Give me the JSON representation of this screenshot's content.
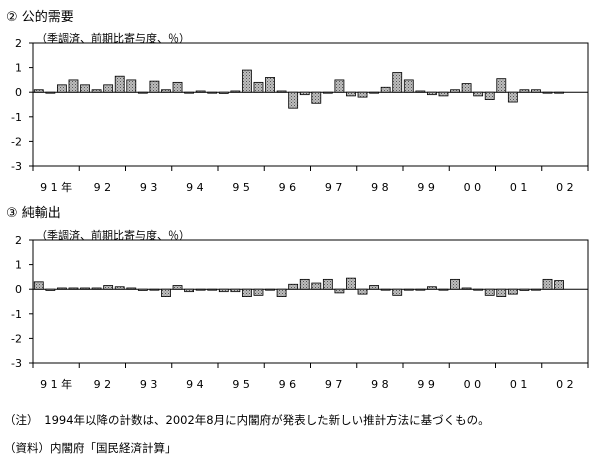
{
  "notes": {
    "note": "（注）　1994年以降の計数は、2002年8月に内閣府が発表した新しい推計方法に基づくもの。",
    "source": "（資料）内閣府「国民経済計算」"
  },
  "chart_data": [
    {
      "type": "bar",
      "title": "② 公的需要",
      "subtitle": "（季調済、前期比寄与度、％）",
      "ylim": [
        -3,
        2
      ],
      "yticks": [
        "2",
        "1",
        "0",
        "-1",
        "-2",
        "-3"
      ],
      "year_labels": [
        "9 1 年",
        "9 2",
        "9 3",
        "9 4",
        "9 5",
        "9 6",
        "9 7",
        "9 8",
        "9 9",
        "0 0",
        "0 1",
        "0 2"
      ],
      "grid": false,
      "x": [
        "91Q1",
        "91Q2",
        "91Q3",
        "91Q4",
        "92Q1",
        "92Q2",
        "92Q3",
        "92Q4",
        "93Q1",
        "93Q2",
        "93Q3",
        "93Q4",
        "94Q1",
        "94Q2",
        "94Q3",
        "94Q4",
        "95Q1",
        "95Q2",
        "95Q3",
        "95Q4",
        "96Q1",
        "96Q2",
        "96Q3",
        "96Q4",
        "97Q1",
        "97Q2",
        "97Q3",
        "97Q4",
        "98Q1",
        "98Q2",
        "98Q3",
        "98Q4",
        "99Q1",
        "99Q2",
        "99Q3",
        "99Q4",
        "00Q1",
        "00Q2",
        "00Q3",
        "00Q4",
        "01Q1",
        "01Q2",
        "01Q3",
        "01Q4",
        "02Q1",
        "02Q2"
      ],
      "values": [
        0.1,
        0,
        0.3,
        0.5,
        0.3,
        0.1,
        0.3,
        0.65,
        0.5,
        0,
        0.45,
        0.1,
        0.4,
        0,
        0.05,
        0,
        -0.05,
        0.05,
        0.9,
        0.4,
        0.6,
        0.05,
        -0.65,
        -0.1,
        -0.45,
        0,
        0.5,
        -0.15,
        -0.2,
        0,
        0.2,
        0.8,
        0.5,
        0.05,
        -0.1,
        -0.15,
        0.1,
        0.35,
        -0.15,
        -0.3,
        0.55,
        -0.4,
        0.1,
        0.1,
        0,
        0
      ]
    },
    {
      "type": "bar",
      "title": "③ 純輸出",
      "subtitle": "（季調済、前期比寄与度、％）",
      "ylim": [
        -3,
        2
      ],
      "yticks": [
        "2",
        "1",
        "0",
        "-1",
        "-2",
        "-3"
      ],
      "year_labels": [
        "9 1 年",
        "9 2",
        "9 3",
        "9 4",
        "9 5",
        "9 6",
        "9 7",
        "9 8",
        "9 9",
        "0 0",
        "0 1",
        "0 2"
      ],
      "grid": false,
      "x": [
        "91Q1",
        "91Q2",
        "91Q3",
        "91Q4",
        "92Q1",
        "92Q2",
        "92Q3",
        "92Q4",
        "93Q1",
        "93Q2",
        "93Q3",
        "93Q4",
        "94Q1",
        "94Q2",
        "94Q3",
        "94Q4",
        "95Q1",
        "95Q2",
        "95Q3",
        "95Q4",
        "96Q1",
        "96Q2",
        "96Q3",
        "96Q4",
        "97Q1",
        "97Q2",
        "97Q3",
        "97Q4",
        "98Q1",
        "98Q2",
        "98Q3",
        "98Q4",
        "99Q1",
        "99Q2",
        "99Q3",
        "99Q4",
        "00Q1",
        "00Q2",
        "00Q3",
        "00Q4",
        "01Q1",
        "01Q2",
        "01Q3",
        "01Q4",
        "02Q1",
        "02Q2"
      ],
      "values": [
        0.3,
        -0.05,
        0.05,
        0.05,
        0.05,
        0.05,
        0.15,
        0.1,
        0.05,
        -0.05,
        0,
        -0.3,
        0.15,
        -0.1,
        0,
        0,
        -0.1,
        -0.1,
        -0.3,
        -0.25,
        0,
        -0.3,
        0.2,
        0.4,
        0.25,
        0.4,
        -0.15,
        0.45,
        -0.2,
        0.15,
        0,
        -0.25,
        0,
        0,
        0.1,
        0,
        0.4,
        0.05,
        0,
        -0.25,
        -0.3,
        -0.2,
        -0.05,
        0,
        0.4,
        0.35
      ]
    }
  ]
}
